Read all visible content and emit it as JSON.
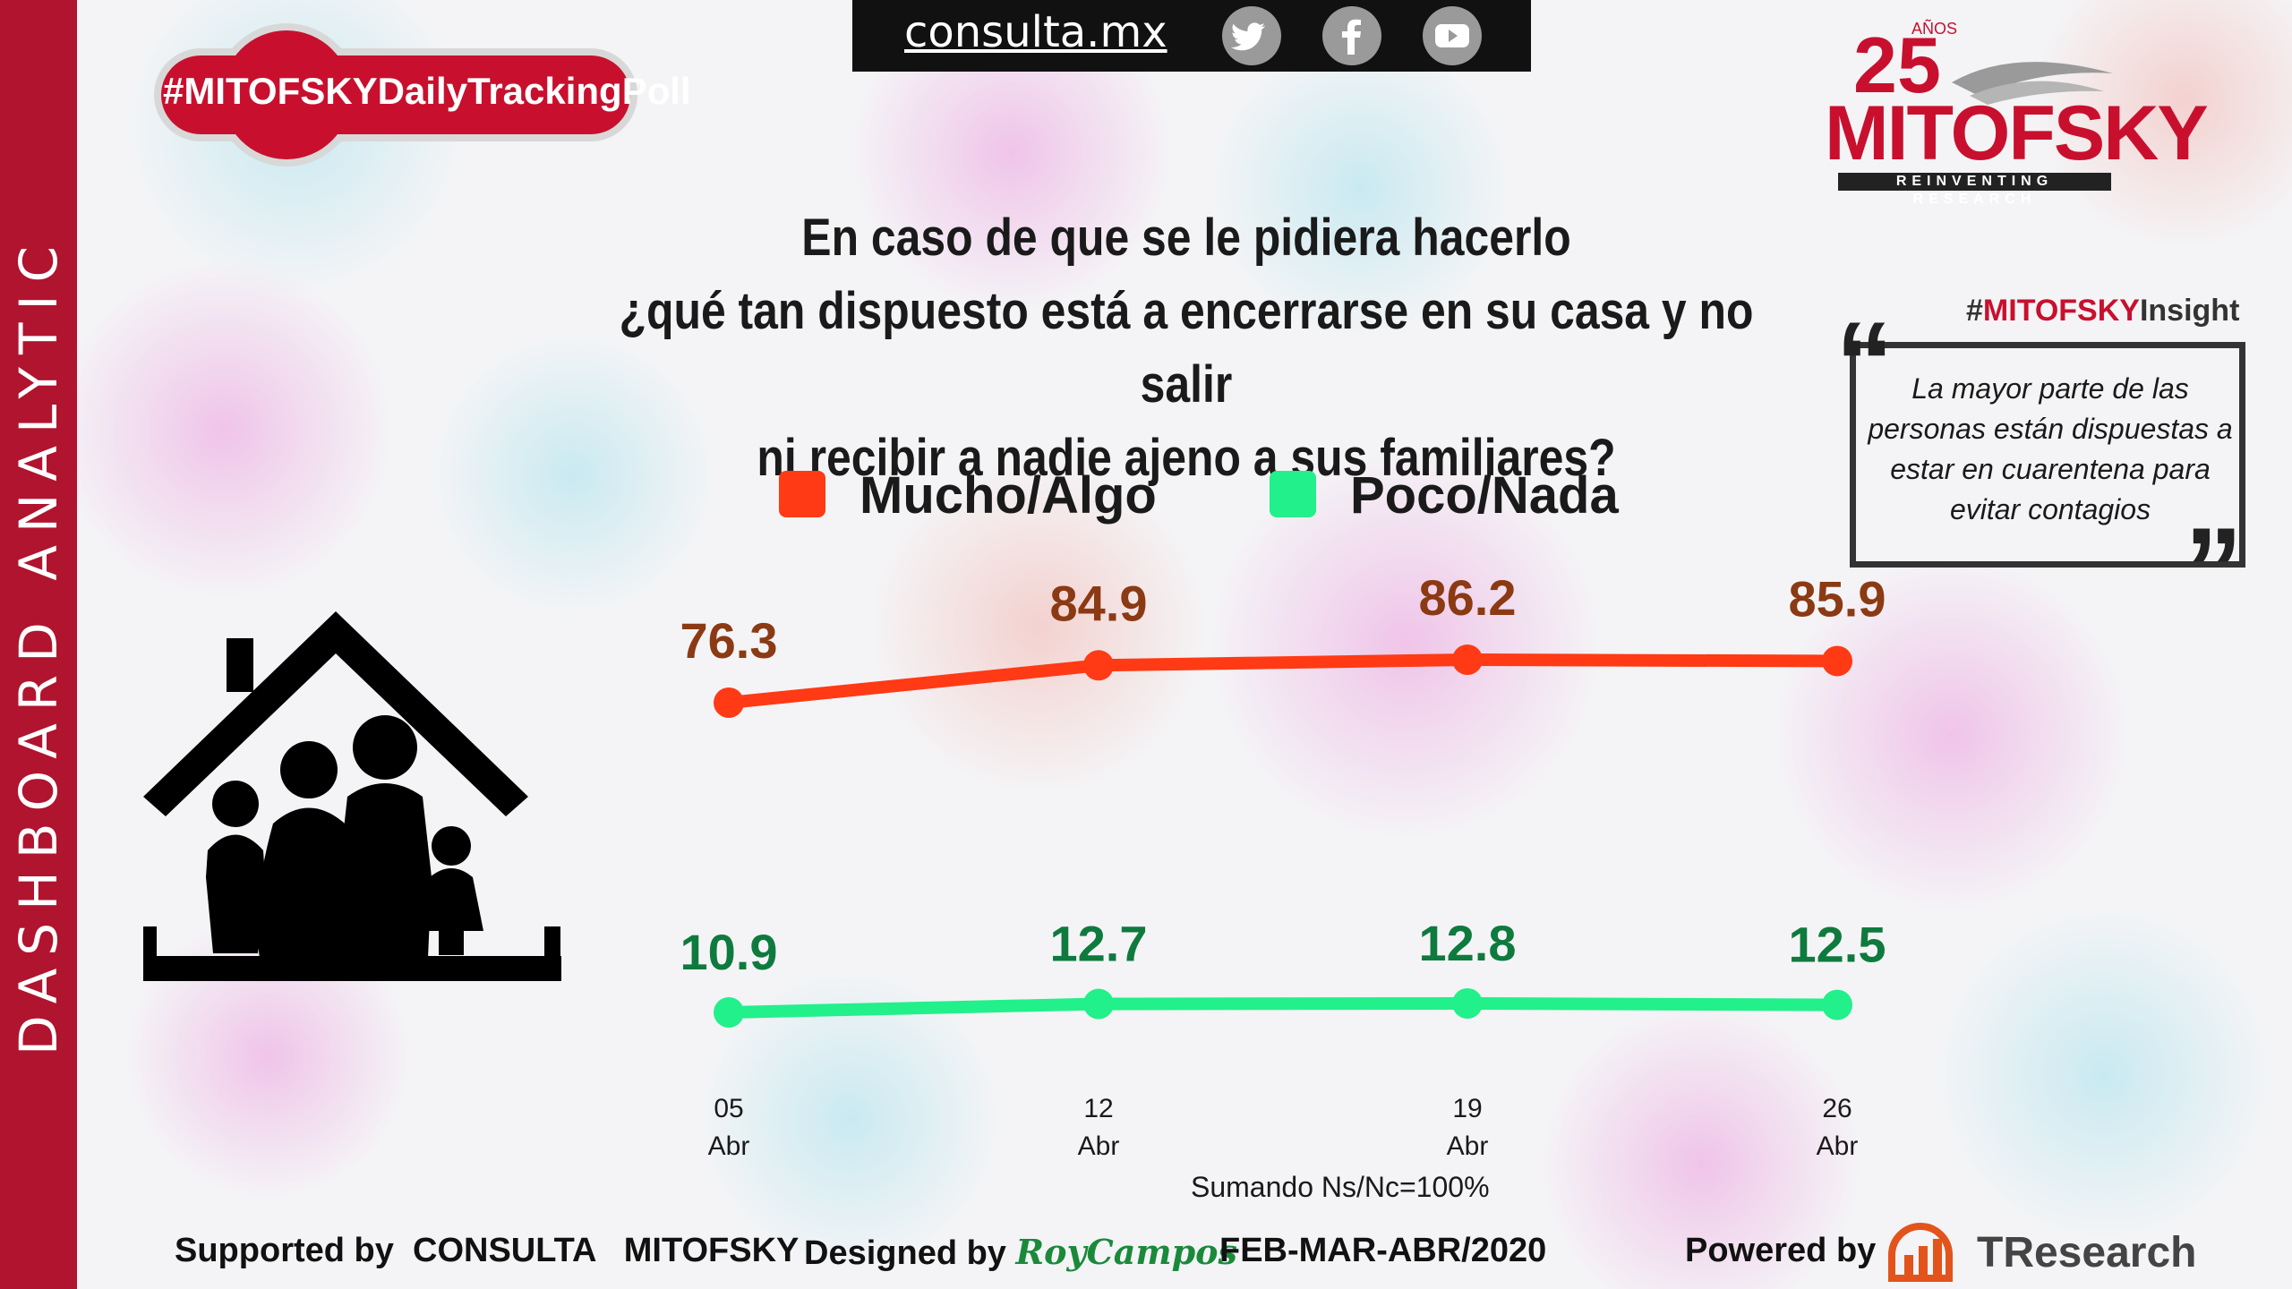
{
  "header": {
    "site": "consulta.mx",
    "hashtag": "#MITOFSKYDailyTrackingPoll",
    "social_icons": [
      "twitter-icon",
      "facebook-icon",
      "youtube-icon"
    ]
  },
  "sidebar": {
    "label": "DASHBOARD ANALYTIC"
  },
  "logo": {
    "anniversary": "25",
    "anos": "AÑOS",
    "name": "MITOFSKY",
    "tagline": "REINVENTING RESEARCH"
  },
  "question": {
    "line1": "En caso de que se le pidiera hacerlo",
    "line2": "¿qué tan dispuesto está a encerrarse en su casa y no salir",
    "line3": "ni recibir a nadie ajeno a sus familiares?"
  },
  "legend": [
    {
      "label": "Mucho/Algo",
      "color": "#ff3a14"
    },
    {
      "label": "Poco/Nada",
      "color": "#22f08a"
    }
  ],
  "insight": {
    "tag_prefix": "#",
    "tag_brand": "MITOFSKY",
    "tag_suffix": "Insight",
    "text": "La mayor parte de  las personas están dispuestas a estar en cuarentena para evitar contagios"
  },
  "chart_data": {
    "type": "line",
    "categories": [
      [
        "05",
        "Abr"
      ],
      [
        "12",
        "Abr"
      ],
      [
        "19",
        "Abr"
      ],
      [
        "26",
        "Abr"
      ]
    ],
    "series": [
      {
        "name": "Mucho/Algo",
        "values": [
          76.3,
          84.9,
          86.2,
          85.9
        ],
        "color": "#ff3a14",
        "label_color": "#8b3a14"
      },
      {
        "name": "Poco/Nada",
        "values": [
          10.9,
          12.7,
          12.8,
          12.5
        ],
        "color": "#22f08a",
        "label_color": "#0f7a3e"
      }
    ],
    "note": "Sumando Ns/Nc=100%"
  },
  "footer": {
    "supported_by": "Supported by",
    "supporter": "CONSULTA   MITOFSKY",
    "designed_by": "Designed by",
    "designer": "RoyCampos",
    "period": "FEB-MAR-ABR/2020",
    "powered_by": "Powered by",
    "powered_brand": "TResearch"
  }
}
